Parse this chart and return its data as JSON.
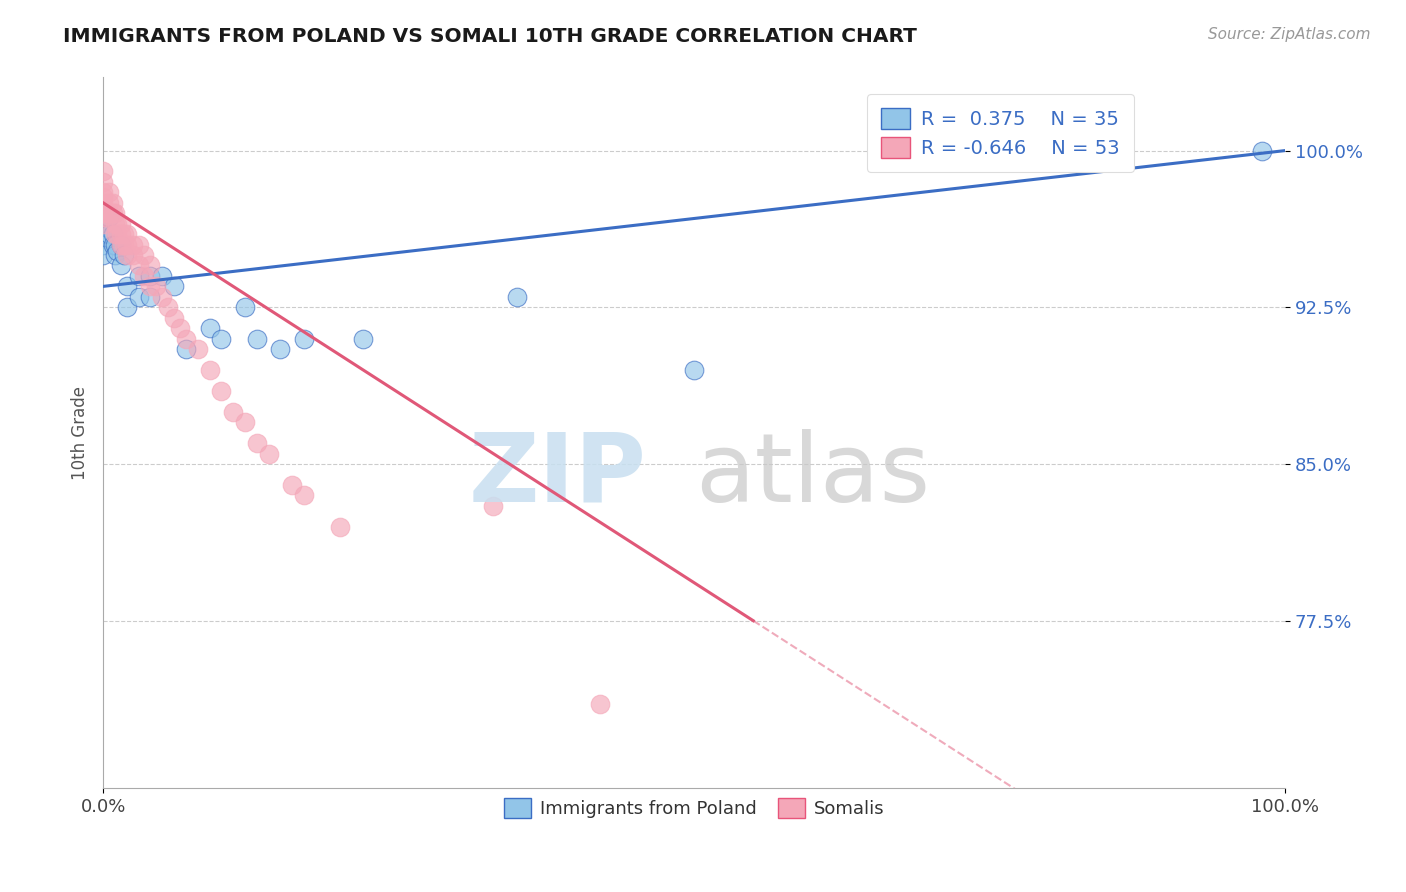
{
  "title": "IMMIGRANTS FROM POLAND VS SOMALI 10TH GRADE CORRELATION CHART",
  "source_text": "Source: ZipAtlas.com",
  "ylabel": "10th Grade",
  "xlim": [
    0.0,
    1.0
  ],
  "ylim": [
    0.695,
    1.035
  ],
  "yticks": [
    0.775,
    0.85,
    0.925,
    1.0
  ],
  "ytick_labels": [
    "77.5%",
    "85.0%",
    "92.5%",
    "100.0%"
  ],
  "xtick_labels": [
    "0.0%",
    "100.0%"
  ],
  "legend_r_poland": "0.375",
  "legend_n_poland": 35,
  "legend_r_somali": "-0.646",
  "legend_n_somali": 53,
  "color_poland": "#92C5E8",
  "color_somali": "#F4A7B8",
  "line_color_poland": "#3B6DC4",
  "line_color_somali": "#E05878",
  "poland_x": [
    0.0,
    0.0,
    0.0,
    0.0,
    0.0,
    0.0,
    0.005,
    0.005,
    0.008,
    0.008,
    0.01,
    0.01,
    0.012,
    0.015,
    0.015,
    0.018,
    0.02,
    0.02,
    0.03,
    0.03,
    0.04,
    0.04,
    0.05,
    0.06,
    0.07,
    0.09,
    0.1,
    0.12,
    0.13,
    0.15,
    0.17,
    0.22,
    0.35,
    0.5,
    0.98
  ],
  "poland_y": [
    0.965,
    0.958,
    0.97,
    0.96,
    0.955,
    0.95,
    0.968,
    0.96,
    0.96,
    0.955,
    0.955,
    0.95,
    0.952,
    0.955,
    0.945,
    0.95,
    0.935,
    0.925,
    0.94,
    0.93,
    0.94,
    0.93,
    0.94,
    0.935,
    0.905,
    0.915,
    0.91,
    0.925,
    0.91,
    0.905,
    0.91,
    0.91,
    0.93,
    0.895,
    1.0
  ],
  "somali_x": [
    0.0,
    0.0,
    0.0,
    0.0,
    0.0,
    0.0,
    0.0,
    0.0,
    0.0,
    0.005,
    0.005,
    0.005,
    0.008,
    0.008,
    0.01,
    0.01,
    0.01,
    0.012,
    0.012,
    0.015,
    0.015,
    0.015,
    0.018,
    0.018,
    0.02,
    0.02,
    0.02,
    0.025,
    0.025,
    0.03,
    0.03,
    0.035,
    0.035,
    0.04,
    0.04,
    0.045,
    0.05,
    0.055,
    0.06,
    0.065,
    0.07,
    0.08,
    0.09,
    0.1,
    0.11,
    0.12,
    0.13,
    0.14,
    0.16,
    0.17,
    0.2,
    0.33,
    0.42
  ],
  "somali_y": [
    0.99,
    0.985,
    0.98,
    0.978,
    0.975,
    0.972,
    0.97,
    0.968,
    0.965,
    0.98,
    0.975,
    0.97,
    0.975,
    0.97,
    0.97,
    0.965,
    0.96,
    0.965,
    0.96,
    0.965,
    0.96,
    0.955,
    0.96,
    0.955,
    0.96,
    0.955,
    0.95,
    0.955,
    0.95,
    0.955,
    0.945,
    0.95,
    0.94,
    0.945,
    0.935,
    0.935,
    0.93,
    0.925,
    0.92,
    0.915,
    0.91,
    0.905,
    0.895,
    0.885,
    0.875,
    0.87,
    0.86,
    0.855,
    0.84,
    0.835,
    0.82,
    0.83,
    0.735
  ],
  "poland_line_x0": 0.0,
  "poland_line_y0": 0.935,
  "poland_line_x1": 1.0,
  "poland_line_y1": 1.0,
  "somali_line_x0": 0.0,
  "somali_line_y0": 0.975,
  "somali_line_x1": 0.55,
  "somali_line_y1": 0.775
}
